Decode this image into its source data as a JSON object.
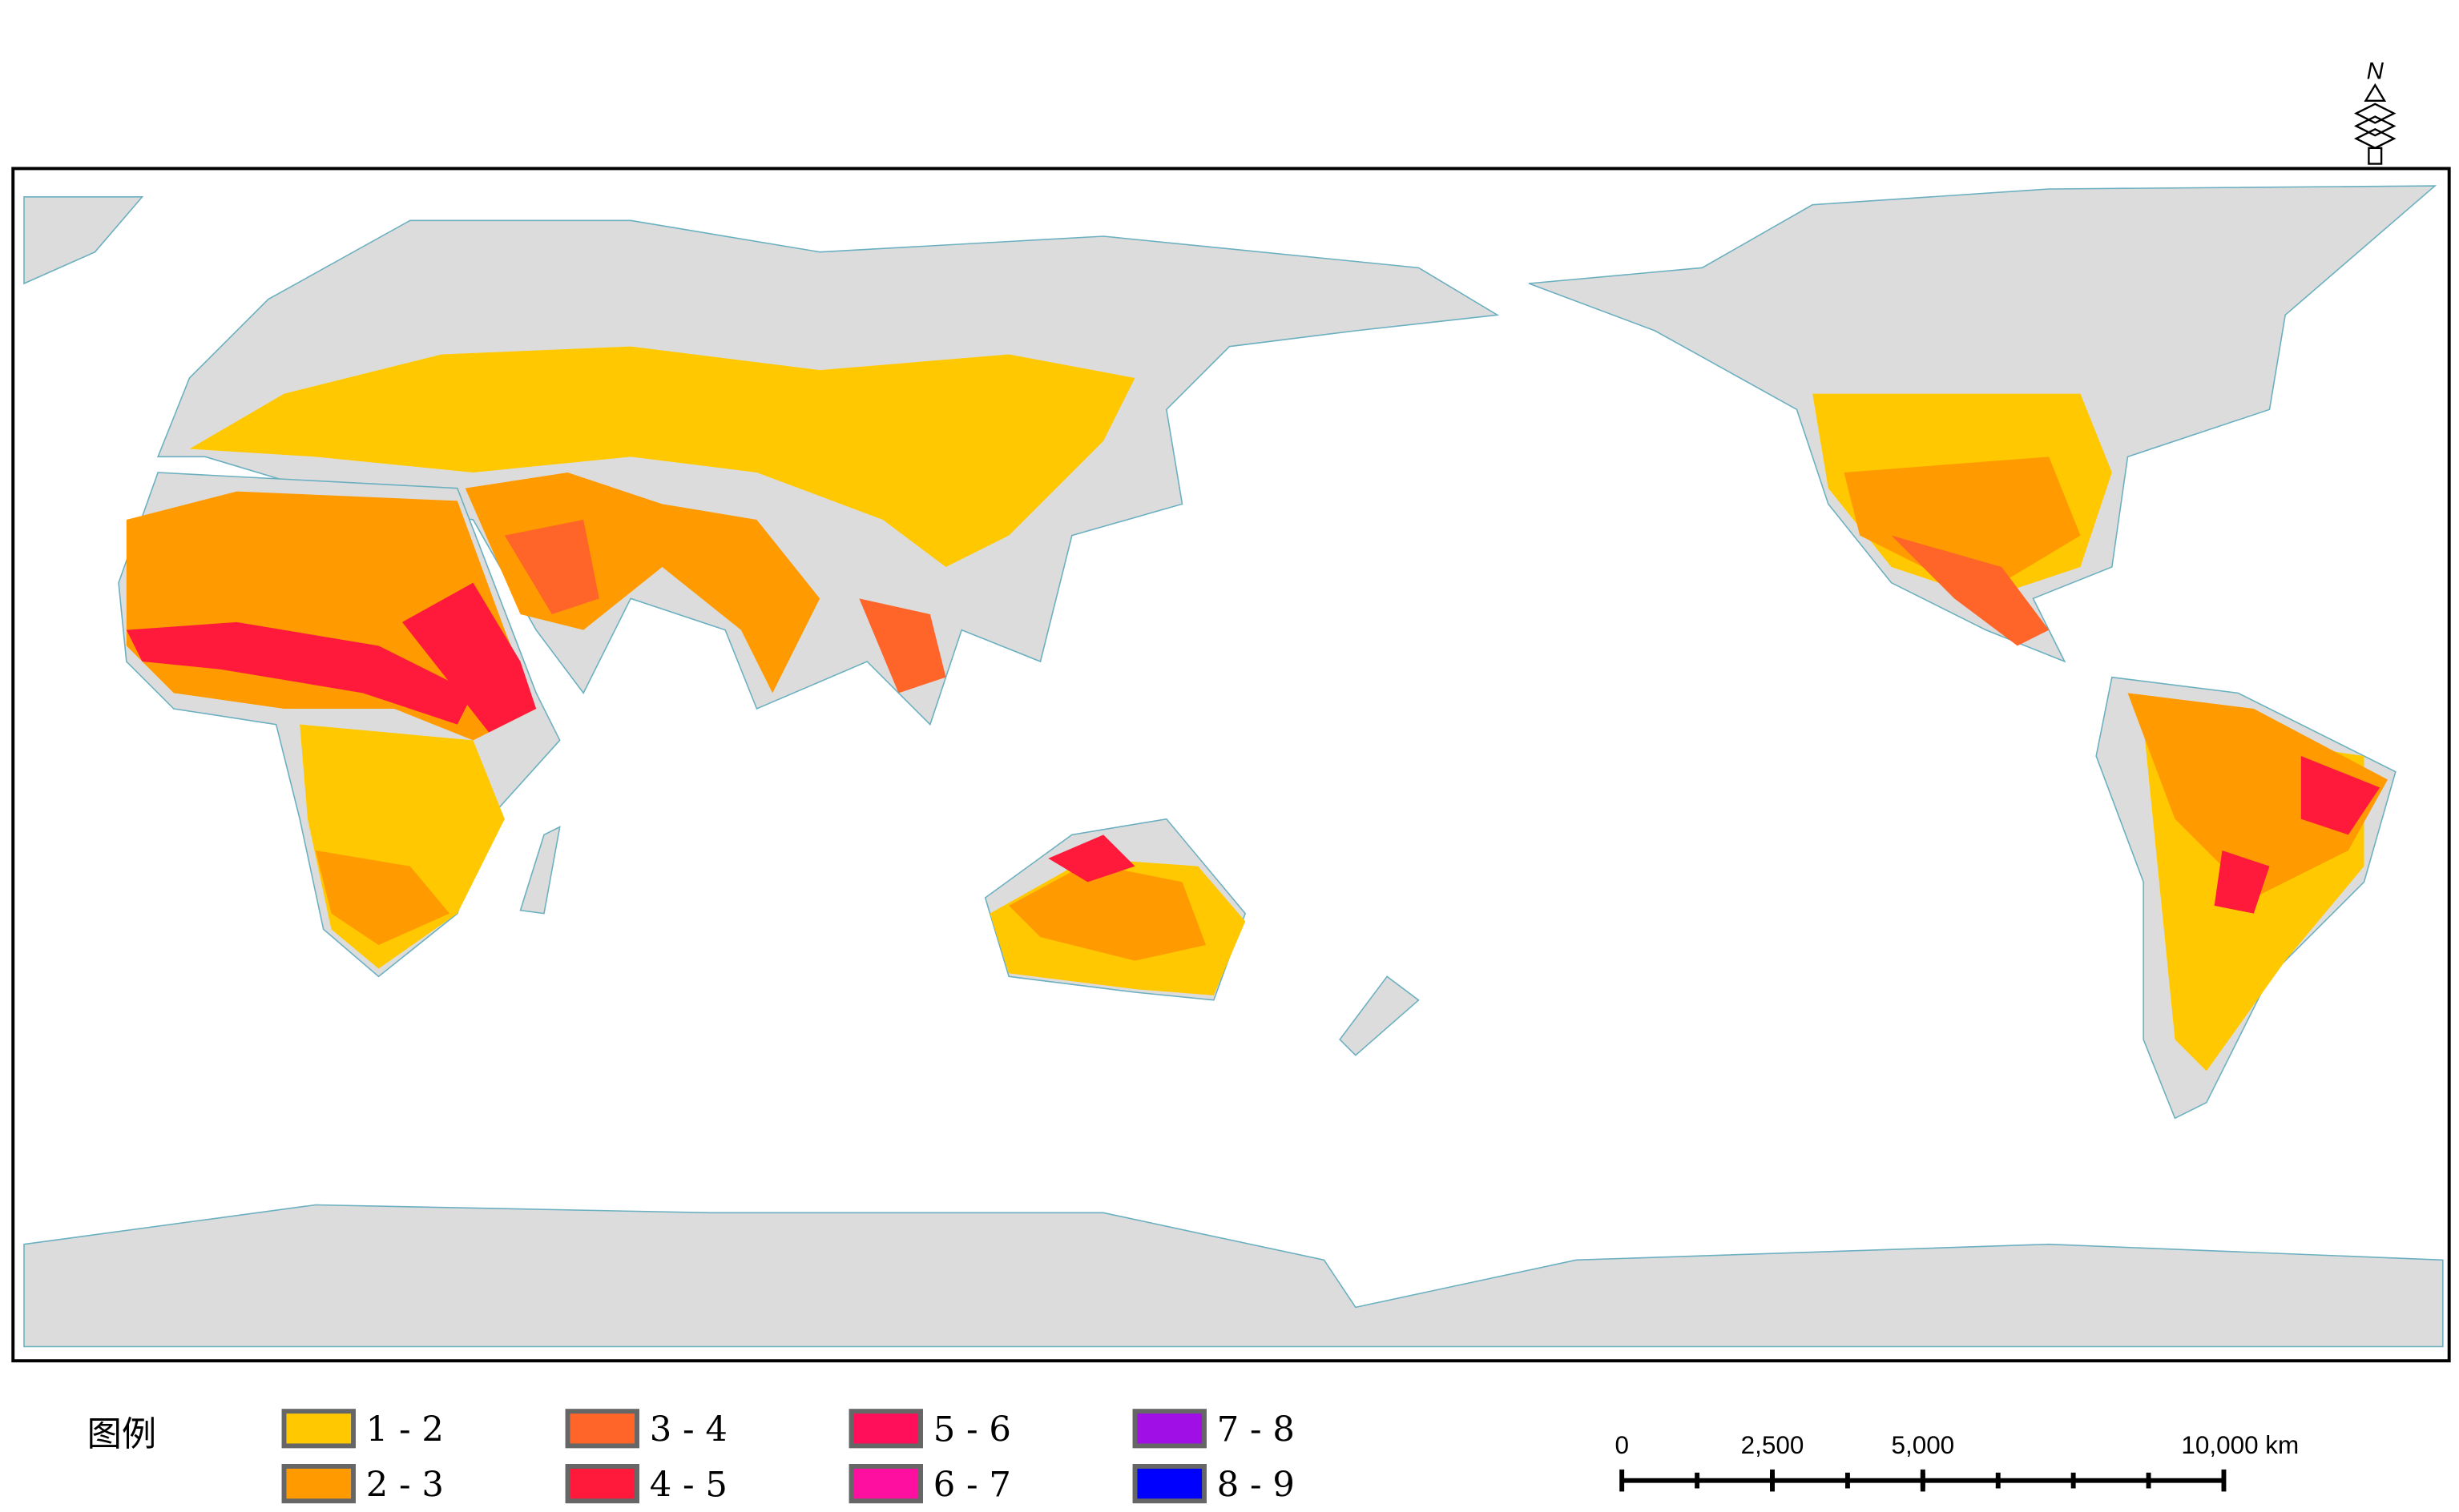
{
  "map": {
    "north_arrow": {
      "label": "N"
    },
    "legend": {
      "title": "图例",
      "items": [
        {
          "label": "1 - 2",
          "color": "#ffc800"
        },
        {
          "label": "2 - 3",
          "color": "#ff9a00"
        },
        {
          "label": "3 - 4",
          "color": "#ff6428"
        },
        {
          "label": "4 - 5",
          "color": "#ff1a3c"
        },
        {
          "label": "5 - 6",
          "color": "#ff0f5a"
        },
        {
          "label": "6 - 7",
          "color": "#ff0fa0"
        },
        {
          "label": "7 - 8",
          "color": "#a00fe6"
        },
        {
          "label": "8 - 9",
          "color": "#0000ff"
        }
      ]
    },
    "scale_bar": {
      "xlim": [
        0,
        10000
      ],
      "ticks": [
        0,
        {
          "value": 2500,
          "label": "2,500"
        },
        {
          "value": 5000,
          "label": "5,000"
        },
        {
          "value": 10000,
          "label": "10,000 km"
        }
      ]
    }
  }
}
